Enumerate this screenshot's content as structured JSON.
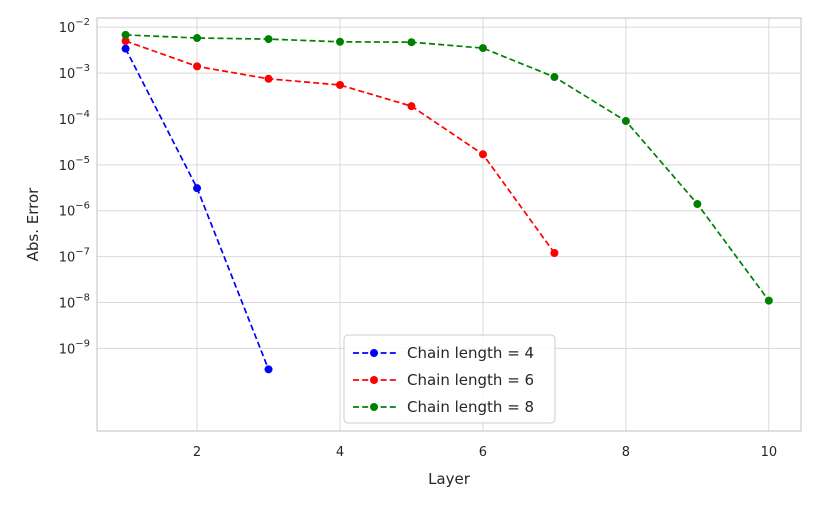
{
  "chart_data": {
    "type": "line",
    "title": "",
    "xlabel": "Layer",
    "ylabel": "Abs. Error",
    "yscale": "log",
    "xlim": [
      0.6,
      10.45
    ],
    "ylim_log10": [
      -10.8,
      -1.8
    ],
    "x_ticks": [
      2,
      4,
      6,
      8,
      10
    ],
    "x_tick_labels": [
      "2",
      "4",
      "6",
      "8",
      "10"
    ],
    "y_ticks_log10": [
      -9,
      -8,
      -7,
      -6,
      -5,
      -4,
      -3,
      -2
    ],
    "y_tick_labels": [
      {
        "base": "10",
        "exp": "−9"
      },
      {
        "base": "10",
        "exp": "−8"
      },
      {
        "base": "10",
        "exp": "−7"
      },
      {
        "base": "10",
        "exp": "−6"
      },
      {
        "base": "10",
        "exp": "−5"
      },
      {
        "base": "10",
        "exp": "−4"
      },
      {
        "base": "10",
        "exp": "−3"
      },
      {
        "base": "10",
        "exp": "−2"
      }
    ],
    "grid": true,
    "legend_position": "bottom-center",
    "series": [
      {
        "name": "Chain length = 4",
        "color": "#0000ff",
        "x": [
          1,
          2,
          3
        ],
        "y": [
          0.0034,
          3.1e-06,
          3.5e-10
        ]
      },
      {
        "name": "Chain length = 6",
        "color": "#ff0000",
        "x": [
          1,
          2,
          3,
          4,
          5,
          6,
          7
        ],
        "y": [
          0.005,
          0.0014,
          0.00075,
          0.00055,
          0.00019,
          1.7e-05,
          1.2e-07
        ]
      },
      {
        "name": "Chain length = 8",
        "color": "#008000",
        "x": [
          1,
          2,
          3,
          4,
          5,
          6,
          7,
          8,
          9,
          10
        ],
        "y": [
          0.0068,
          0.0058,
          0.0055,
          0.0048,
          0.0047,
          0.0035,
          0.00082,
          9e-05,
          1.4e-06,
          1.1e-08
        ]
      }
    ]
  }
}
